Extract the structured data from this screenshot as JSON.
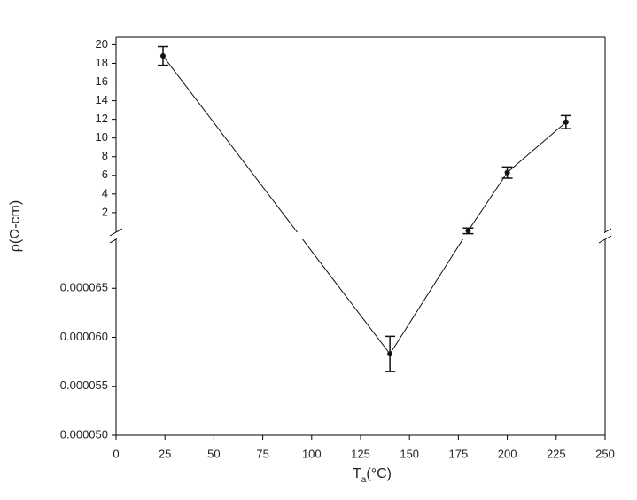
{
  "chart_data": {
    "type": "line",
    "xlabel": [
      "T",
      "a",
      "(°C)"
    ],
    "ylabel": "ρ(Ω-cm)",
    "xlim": [
      0,
      250
    ],
    "xticks": [
      0,
      25,
      50,
      75,
      100,
      125,
      150,
      175,
      200,
      225,
      250
    ],
    "y_segments": [
      {
        "ylim": [
          5e-05,
          7e-05
        ],
        "yticks": [
          {
            "value": 5e-05,
            "label": "0.000050"
          },
          5.5e-05,
          {
            "value": 6e-05,
            "label": "0.000060"
          },
          6.5e-05
        ]
      },
      {
        "ylim": [
          -0.1,
          20.8
        ],
        "yticks": [
          2,
          4,
          6,
          8,
          10,
          12,
          14,
          16,
          18,
          20
        ]
      }
    ],
    "series": [
      {
        "color": "#111111",
        "x": [
          24,
          140,
          180,
          200,
          230
        ],
        "values": [
          18.8,
          5.83e-05,
          0.05,
          6.3,
          11.7
        ],
        "errors": [
          1.0,
          1.8e-06,
          0.3,
          0.6,
          0.7
        ]
      }
    ]
  }
}
